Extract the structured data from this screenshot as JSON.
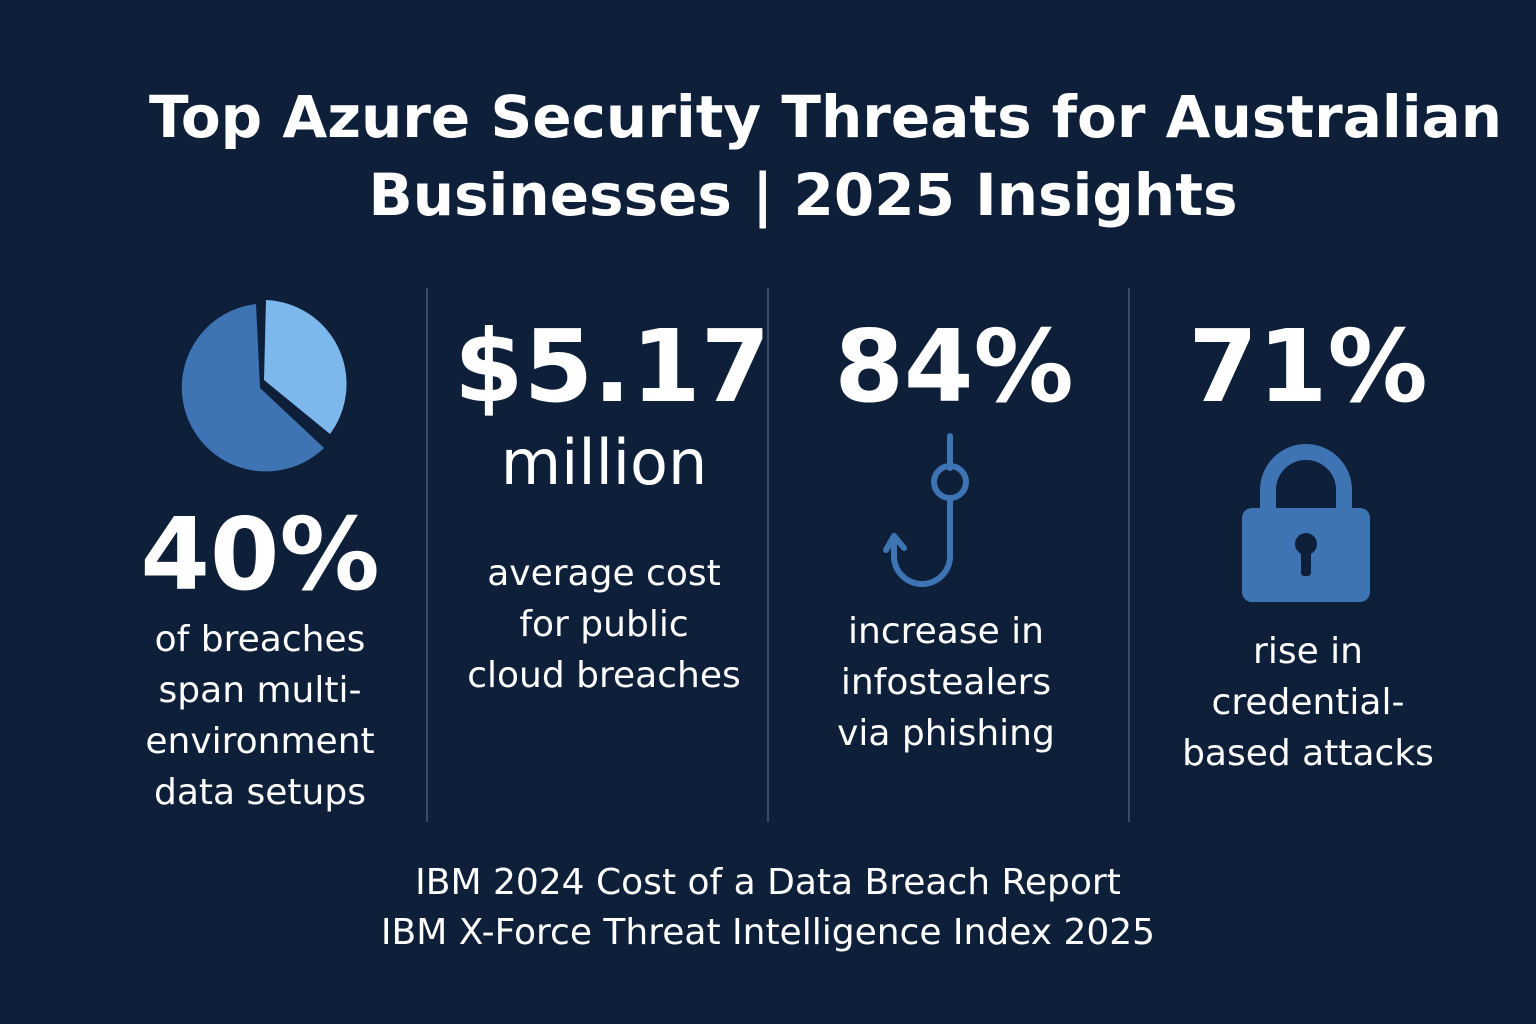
{
  "title": {
    "line1": "Top Azure Security Threats for Australian",
    "line2": "Businesses | 2025 Insights"
  },
  "stats": [
    {
      "value": "40%",
      "icon": "pie-chart-icon",
      "description": [
        "of breaches",
        "span multi-",
        "environment",
        "data setups"
      ]
    },
    {
      "value": "$5.17",
      "unit": "million",
      "description": [
        "average cost",
        "for public",
        "cloud breaches"
      ]
    },
    {
      "value": "84%",
      "icon": "fishing-hook-icon",
      "description": [
        "increase in",
        "infostealers",
        "via phishing"
      ]
    },
    {
      "value": "71%",
      "icon": "padlock-icon",
      "description": [
        "rise in",
        "credential-",
        "based attacks"
      ]
    }
  ],
  "sources": [
    "IBM 2024 Cost of a Data Breach Report",
    "IBM X-Force Threat Intelligence Index 2025"
  ],
  "colors": {
    "background": "#0e1f39",
    "icon_dark": "#3f74b4",
    "icon_light": "#7cb8ec",
    "text": "#ffffff",
    "divider": "#3a4b68"
  }
}
